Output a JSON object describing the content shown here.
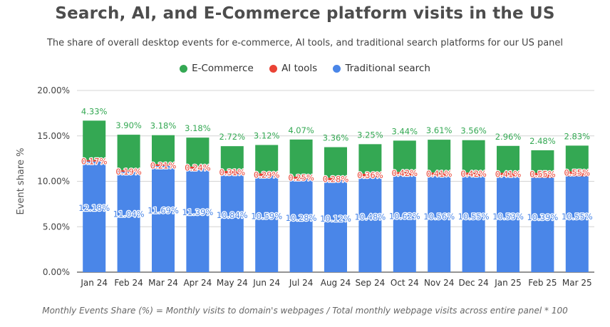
{
  "chart_data": {
    "type": "bar",
    "stacked": true,
    "title": "Search, AI, and E-Commerce platform visits in the US",
    "subtitle": "The share of overall desktop events for e-commerce, AI tools, and traditional search platforms for our US panel",
    "xlabel": "",
    "ylabel": "Event share %",
    "ylim": [
      0,
      20
    ],
    "yticks": [
      "0.00%",
      "5.00%",
      "10.00%",
      "15.00%",
      "20.00%"
    ],
    "legend_position": "top-center",
    "categories": [
      "Jan 24",
      "Feb 24",
      "Mar 24",
      "Apr 24",
      "May 24",
      "Jun 24",
      "Jul 24",
      "Aug 24",
      "Sep 24",
      "Oct 24",
      "Nov 24",
      "Dec 24",
      "Jan 25",
      "Feb 25",
      "Mar 25"
    ],
    "series": [
      {
        "name": "Traditional search",
        "color": "#4a86e8",
        "values": [
          12.18,
          11.04,
          11.69,
          11.39,
          10.84,
          10.59,
          10.28,
          10.12,
          10.48,
          10.62,
          10.56,
          10.55,
          10.53,
          10.39,
          10.55
        ],
        "labels": [
          "12.18%",
          "11.04%",
          "11.69%",
          "11.39%",
          "10.84%",
          "10.59%",
          "10.28%",
          "10.12%",
          "10.48%",
          "10.62%",
          "10.56%",
          "10.55%",
          "10.53%",
          "10.39%",
          "10.55%"
        ]
      },
      {
        "name": "AI tools",
        "color": "#ea4335",
        "values": [
          0.17,
          0.19,
          0.21,
          0.24,
          0.31,
          0.29,
          0.25,
          0.28,
          0.36,
          0.42,
          0.41,
          0.42,
          0.41,
          0.55,
          0.55
        ],
        "labels": [
          "0.17%",
          "0.19%",
          "0.21%",
          "0.24%",
          "0.31%",
          "0.29%",
          "0.25%",
          "0.28%",
          "0.36%",
          "0.42%",
          "0.41%",
          "0.42%",
          "0.41%",
          "0.55%",
          "0.55%"
        ]
      },
      {
        "name": "E-Commerce",
        "color": "#34a853",
        "values": [
          4.33,
          3.9,
          3.18,
          3.18,
          2.72,
          3.12,
          4.07,
          3.36,
          3.25,
          3.44,
          3.61,
          3.56,
          2.96,
          2.48,
          2.83
        ],
        "labels": [
          "4.33%",
          "3.90%",
          "3.18%",
          "3.18%",
          "2.72%",
          "3.12%",
          "4.07%",
          "3.36%",
          "3.25%",
          "3.44%",
          "3.61%",
          "3.56%",
          "2.96%",
          "2.48%",
          "2.83%"
        ]
      }
    ],
    "legend": [
      {
        "name": "E-Commerce",
        "color": "#34a853"
      },
      {
        "name": "AI tools",
        "color": "#ea4335"
      },
      {
        "name": "Traditional search",
        "color": "#4a86e8"
      }
    ],
    "footnote": "Monthly Events Share (%) = Monthly visits to domain's webpages / Total monthly webpage visits across entire panel * 100"
  }
}
